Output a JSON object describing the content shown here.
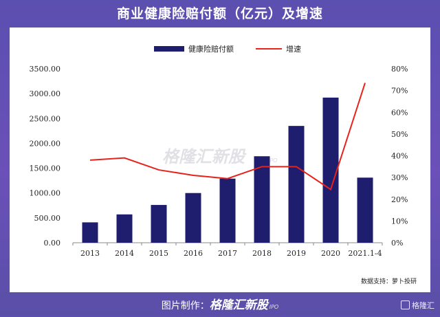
{
  "title": "商业健康险赔付额（亿元）及增速",
  "watermark": "格隆汇新股",
  "watermark_sub": "IPO",
  "source": "数据支持：萝卜投研",
  "footer": {
    "label": "图片制作：",
    "brand": "格隆汇新股",
    "sub": "IPO"
  },
  "corner_logo": "格隆汇",
  "colors": {
    "bar": "#1f1d6e",
    "line": "#e8221b",
    "background": "#5b4fb0"
  },
  "chart_data": {
    "type": "bar",
    "categories": [
      "2013",
      "2014",
      "2015",
      "2016",
      "2017",
      "2018",
      "2019",
      "2020",
      "2021.1-4"
    ],
    "series": [
      {
        "name": "健康险赔付额",
        "type": "bar",
        "axis": "left",
        "values": [
          410,
          570,
          760,
          1000,
          1290,
          1740,
          2350,
          2920,
          1310
        ]
      },
      {
        "name": "增速",
        "type": "line",
        "axis": "right",
        "values": [
          0.38,
          0.39,
          0.335,
          0.31,
          0.295,
          0.35,
          0.35,
          0.245,
          0.735
        ]
      }
    ],
    "y_left": {
      "ylim": [
        0,
        3500
      ],
      "ticks": [
        "0.00",
        "500.00",
        "1000.00",
        "1500.00",
        "2000.00",
        "2500.00",
        "3000.00",
        "3500.00"
      ]
    },
    "y_right": {
      "ylim": [
        0,
        0.8
      ],
      "ticks": [
        "0%",
        "10%",
        "20%",
        "30%",
        "40%",
        "50%",
        "60%",
        "70%",
        "80%"
      ]
    },
    "legend": [
      "健康险赔付额",
      "增速"
    ],
    "legend_position": "top-center",
    "grid": false
  }
}
